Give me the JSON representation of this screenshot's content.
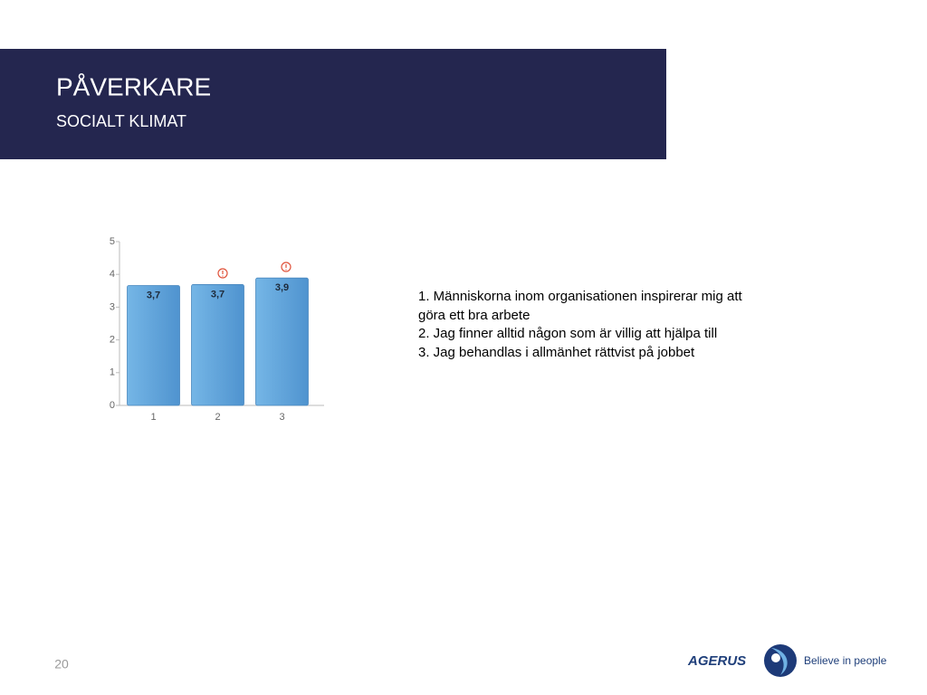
{
  "header": {
    "title": "PÅVERKARE",
    "subtitle": "SOCIALT KLIMAT"
  },
  "chart_data": {
    "type": "bar",
    "categories": [
      "1",
      "2",
      "3"
    ],
    "values": [
      3.66,
      3.69,
      3.89
    ],
    "value_labels": [
      "3,7",
      "3,7",
      "3,9"
    ],
    "color": "#5fa3dc",
    "ylim": [
      0,
      5
    ],
    "yticks": [
      0,
      1,
      2,
      3,
      4,
      5
    ],
    "grid": false
  },
  "notes": [
    "1. Människorna inom organisationen inspirerar mig att göra ett bra arbete",
    "2. Jag finner alltid någon som är villig att hjälpa till",
    "3. Jag behandlas i allmänhet rättvist på jobbet"
  ],
  "footer": {
    "page": "20",
    "brand": "AGERUS",
    "tagline": "Believe in people"
  }
}
